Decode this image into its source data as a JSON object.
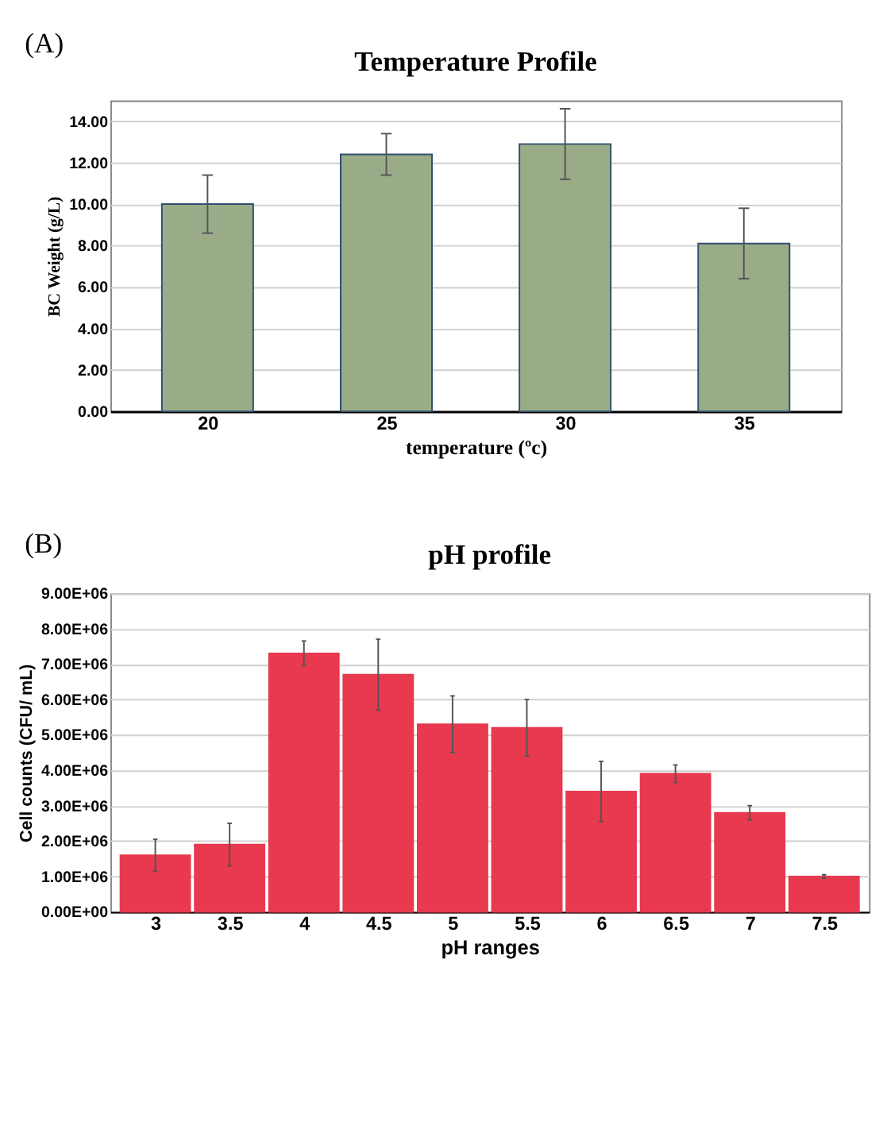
{
  "chart_data": [
    {
      "type": "bar",
      "title": "Temperature Profile",
      "annotations": [
        "(A)"
      ],
      "xlabel": "temperature (ºc)",
      "ylabel": "BC  Weight (g/L)",
      "categories": [
        "20",
        "25",
        "30",
        "35"
      ],
      "series": [
        {
          "color": "#9aab88",
          "values": [
            10.0,
            12.4,
            12.9,
            8.1
          ],
          "errors": [
            1.4,
            1.0,
            1.7,
            1.7
          ]
        }
      ],
      "ylim": [
        0,
        15
      ],
      "yticks": [
        {
          "value": 0,
          "label": "0.00"
        },
        {
          "value": 2,
          "label": "2.00"
        },
        {
          "value": 4,
          "label": "4.00"
        },
        {
          "value": 6,
          "label": "6.00"
        },
        {
          "value": 8,
          "label": "8.00"
        },
        {
          "value": 10,
          "label": "10.00"
        },
        {
          "value": 12,
          "label": "12.00"
        },
        {
          "value": 14,
          "label": "14.00"
        }
      ],
      "grid": "y"
    },
    {
      "type": "bar",
      "title": "pH profile",
      "annotations": [
        "(B)"
      ],
      "xlabel": "pH ranges",
      "ylabel": "Cell counts (CFU/ mL)",
      "categories": [
        "3",
        "3.5",
        "4",
        "4.5",
        "5",
        "5.5",
        "6",
        "6.5",
        "7",
        "7.5"
      ],
      "series": [
        {
          "color": "#e8394f",
          "values": [
            1600000,
            1900000,
            7300000,
            6700000,
            5300000,
            5200000,
            3400000,
            3900000,
            2800000,
            1000000
          ],
          "errors": [
            450000,
            600000,
            350000,
            1000000,
            800000,
            800000,
            850000,
            250000,
            200000,
            50000
          ]
        }
      ],
      "ylim": [
        0,
        9000000
      ],
      "yticks": [
        {
          "value": 0,
          "label": "0.00E+00"
        },
        {
          "value": 1000000,
          "label": "1.00E+06"
        },
        {
          "value": 2000000,
          "label": "2.00E+06"
        },
        {
          "value": 3000000,
          "label": "3.00E+06"
        },
        {
          "value": 4000000,
          "label": "4.00E+06"
        },
        {
          "value": 5000000,
          "label": "5.00E+06"
        },
        {
          "value": 6000000,
          "label": "6.00E+06"
        },
        {
          "value": 7000000,
          "label": "7.00E+06"
        },
        {
          "value": 8000000,
          "label": "8.00E+06"
        },
        {
          "value": 9000000,
          "label": "9.00E+06"
        }
      ],
      "grid": "y"
    }
  ]
}
